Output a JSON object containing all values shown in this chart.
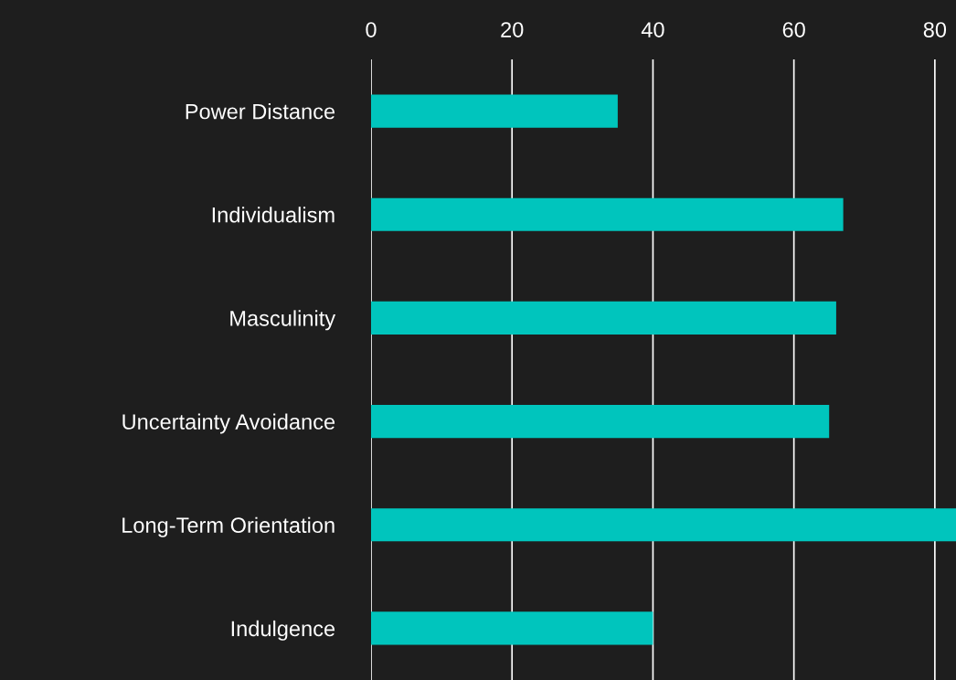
{
  "chart_data": {
    "type": "bar",
    "orientation": "horizontal",
    "categories": [
      "Power Distance",
      "Individualism",
      "Masculinity",
      "Uncertainty Avoidance",
      "Long-Term Orientation",
      "Indulgence"
    ],
    "values": [
      35,
      67,
      66,
      65,
      83,
      40
    ],
    "color": "#00c5bd",
    "xlim": [
      0,
      83
    ],
    "xticks": [
      0,
      20,
      40,
      60,
      80
    ],
    "grid": "x",
    "legend": false
  }
}
